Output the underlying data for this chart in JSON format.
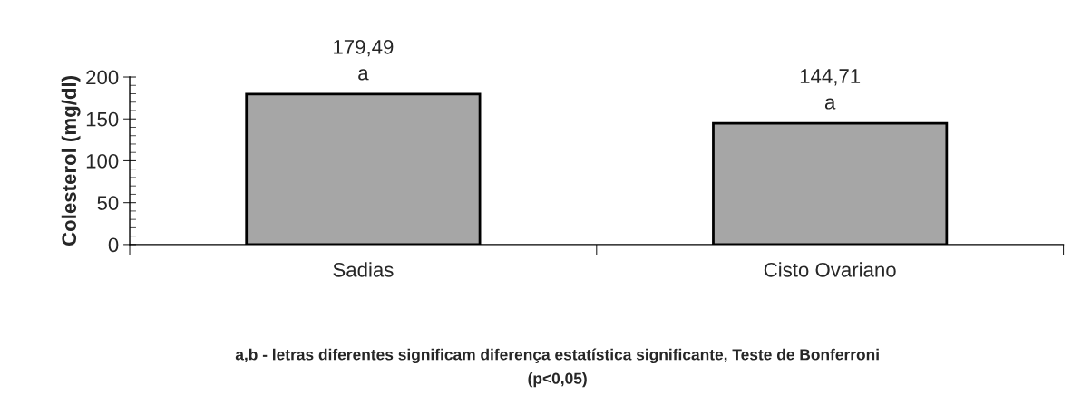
{
  "chart_data": {
    "type": "bar",
    "ylabel": "Colesterol (mg/dl)",
    "categories": [
      "Sadias",
      "Cisto Ovariano"
    ],
    "values": [
      179.49,
      144.71
    ],
    "color": "#a6a6a6",
    "value_labels": [
      "179,49\na",
      "144,71\na"
    ],
    "ylim": [
      0,
      200
    ],
    "yticks": [
      0,
      50,
      100,
      150,
      200
    ],
    "grid": false,
    "legend": false,
    "annotations": [
      "a,b - letras diferentes significam diferença estatística significante, Teste de Bonferroni\n(p<0,05)"
    ]
  }
}
